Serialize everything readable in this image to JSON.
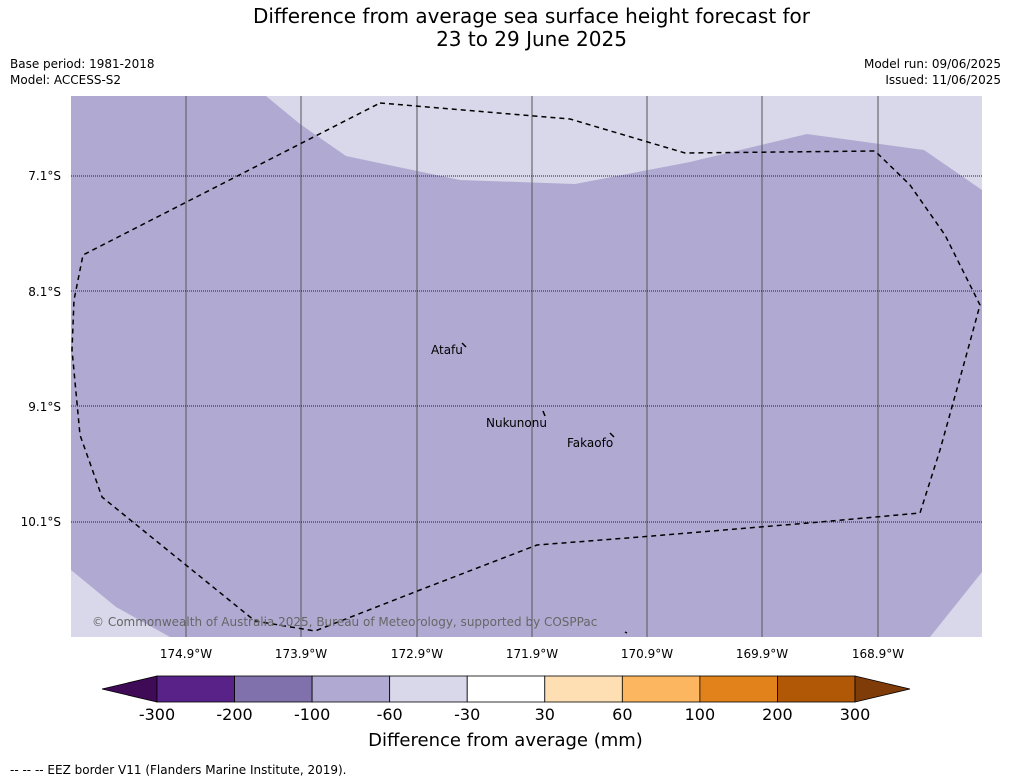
{
  "title_line1": "Difference from average sea surface height forecast for",
  "title_line2": "23 to 29 June 2025",
  "base_period": "Base period: 1981-2018",
  "model": "Model: ACCESS-S2",
  "model_run": "Model run: 09/06/2025",
  "issued": "Issued: 11/06/2025",
  "lat_labels": [
    "7.1°S",
    "8.1°S",
    "9.1°S",
    "10.1°S"
  ],
  "lon_labels": [
    "174.9°W",
    "173.9°W",
    "172.9°W",
    "171.9°W",
    "170.9°W",
    "169.9°W",
    "168.9°W"
  ],
  "places": [
    "Atafu",
    "Nukunonu",
    "Fakaofo"
  ],
  "copyright": "© Commonwealth of Australia 2025, Bureau of Meteorology, supported by COSPPac",
  "colorbar": {
    "ticks": [
      "-300",
      "-200",
      "-100",
      "-60",
      "-30",
      "30",
      "60",
      "100",
      "200",
      "300"
    ],
    "colors": [
      "#3f0b57",
      "#582289",
      "#8071ad",
      "#b0aad2",
      "#d8d8ea",
      "#ffffff",
      "#fedfb4",
      "#fbb65f",
      "#e2821b",
      "#b15807",
      "#7f3b08"
    ],
    "title": "Difference from average (mm)"
  },
  "field_colors": {
    "dominant": "#b0aad2",
    "secondary": "#d8d8ea"
  },
  "footer": "--  --  -- EEZ border V11 (Flanders Marine Institute, 2019)."
}
